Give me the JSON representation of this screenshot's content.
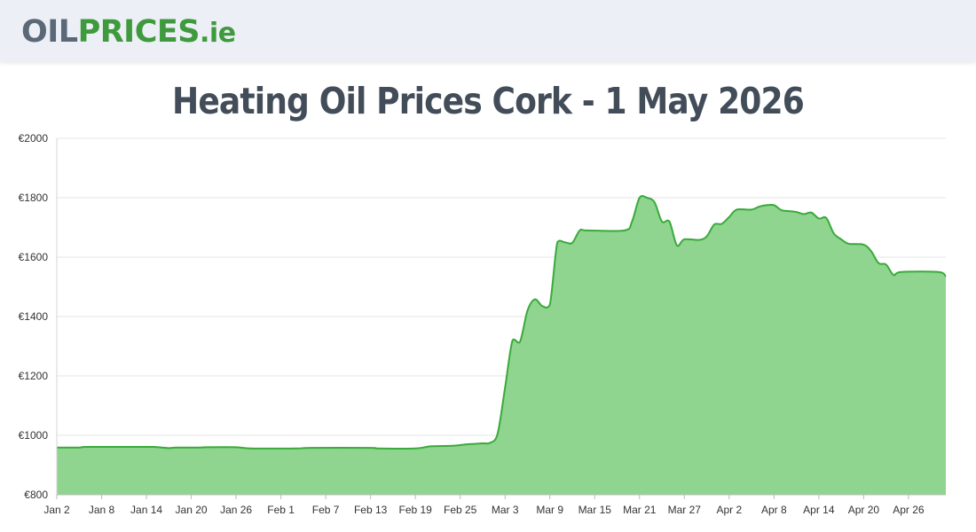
{
  "header": {
    "logo_part1": "OIL",
    "logo_part2": "PRICES",
    "logo_part3": ".",
    "logo_part4": "ie"
  },
  "page_title": "Heating Oil Prices Cork - 1 May 2026",
  "colors": {
    "header_bg": "#eceff5",
    "logo_grey": "#5b6878",
    "logo_green": "#3e9a3c",
    "area_fill": "#8fd48f",
    "line": "#3aaa3a",
    "title": "#434d5a"
  },
  "chart_data": {
    "type": "area",
    "title": "",
    "xlabel": "",
    "ylabel": "",
    "ylim": [
      800,
      2000
    ],
    "grid": true,
    "legend": "none",
    "y_ticks": [
      "€800",
      "€1000",
      "€1200",
      "€1400",
      "€1600",
      "€1800",
      "€2000"
    ],
    "y_tick_values": [
      800,
      1000,
      1200,
      1400,
      1600,
      1800,
      2000
    ],
    "x_ticks": [
      "Jan 2",
      "Jan 8",
      "Jan 14",
      "Jan 20",
      "Jan 26",
      "Feb 1",
      "Feb 7",
      "Feb 13",
      "Feb 19",
      "Feb 25",
      "Mar 3",
      "Mar 9",
      "Mar 15",
      "Mar 21",
      "Mar 27",
      "Apr 2",
      "Apr 8",
      "Apr 14",
      "Apr 20",
      "Apr 26"
    ],
    "x_tick_day_step": 6,
    "series": [
      {
        "values": [
          {
            "x": "Jan 2",
            "y": 959
          },
          {
            "x": "Jan 5",
            "y": 959
          },
          {
            "x": "Jan 6",
            "y": 961
          },
          {
            "x": "Jan 13",
            "y": 961
          },
          {
            "x": "Jan 15",
            "y": 961
          },
          {
            "x": "Jan 17",
            "y": 957
          },
          {
            "x": "Jan 18",
            "y": 959
          },
          {
            "x": "Jan 21",
            "y": 959
          },
          {
            "x": "Jan 22",
            "y": 960
          },
          {
            "x": "Jan 26",
            "y": 960
          },
          {
            "x": "Jan 28",
            "y": 956
          },
          {
            "x": "Feb 3",
            "y": 956
          },
          {
            "x": "Feb 5",
            "y": 958
          },
          {
            "x": "Feb 13",
            "y": 958
          },
          {
            "x": "Feb 14",
            "y": 956
          },
          {
            "x": "Feb 19",
            "y": 956
          },
          {
            "x": "Feb 21",
            "y": 963
          },
          {
            "x": "Feb 24",
            "y": 965
          },
          {
            "x": "Feb 26",
            "y": 970
          },
          {
            "x": "Feb 28",
            "y": 973
          },
          {
            "x": "Mar 1",
            "y": 975
          },
          {
            "x": "Mar 2",
            "y": 1005
          },
          {
            "x": "Mar 3",
            "y": 1160
          },
          {
            "x": "Mar 4",
            "y": 1320
          },
          {
            "x": "Mar 5",
            "y": 1315
          },
          {
            "x": "Mar 6",
            "y": 1420
          },
          {
            "x": "Mar 7",
            "y": 1458
          },
          {
            "x": "Mar 8",
            "y": 1435
          },
          {
            "x": "Mar 9",
            "y": 1440
          },
          {
            "x": "Mar 10",
            "y": 1650
          },
          {
            "x": "Mar 11",
            "y": 1650
          },
          {
            "x": "Mar 12",
            "y": 1648
          },
          {
            "x": "Mar 13",
            "y": 1690
          },
          {
            "x": "Mar 14",
            "y": 1690
          },
          {
            "x": "Mar 19",
            "y": 1690
          },
          {
            "x": "Mar 20",
            "y": 1720
          },
          {
            "x": "Mar 21",
            "y": 1800
          },
          {
            "x": "Mar 22",
            "y": 1800
          },
          {
            "x": "Mar 23",
            "y": 1785
          },
          {
            "x": "Mar 24",
            "y": 1720
          },
          {
            "x": "Mar 25",
            "y": 1720
          },
          {
            "x": "Mar 26",
            "y": 1640
          },
          {
            "x": "Mar 27",
            "y": 1660
          },
          {
            "x": "Mar 29",
            "y": 1658
          },
          {
            "x": "Mar 30",
            "y": 1670
          },
          {
            "x": "Mar 31",
            "y": 1710
          },
          {
            "x": "Apr 1",
            "y": 1712
          },
          {
            "x": "Apr 2",
            "y": 1735
          },
          {
            "x": "Apr 3",
            "y": 1760
          },
          {
            "x": "Apr 5",
            "y": 1760
          },
          {
            "x": "Apr 6",
            "y": 1770
          },
          {
            "x": "Apr 7",
            "y": 1775
          },
          {
            "x": "Apr 8",
            "y": 1775
          },
          {
            "x": "Apr 9",
            "y": 1758
          },
          {
            "x": "Apr 10",
            "y": 1755
          },
          {
            "x": "Apr 11",
            "y": 1752
          },
          {
            "x": "Apr 12",
            "y": 1745
          },
          {
            "x": "Apr 13",
            "y": 1750
          },
          {
            "x": "Apr 14",
            "y": 1730
          },
          {
            "x": "Apr 15",
            "y": 1732
          },
          {
            "x": "Apr 16",
            "y": 1680
          },
          {
            "x": "Apr 17",
            "y": 1660
          },
          {
            "x": "Apr 18",
            "y": 1645
          },
          {
            "x": "Apr 20",
            "y": 1642
          },
          {
            "x": "Apr 21",
            "y": 1620
          },
          {
            "x": "Apr 22",
            "y": 1580
          },
          {
            "x": "Apr 23",
            "y": 1575
          },
          {
            "x": "Apr 24",
            "y": 1540
          },
          {
            "x": "Apr 25",
            "y": 1550
          },
          {
            "x": "Apr 30",
            "y": 1550
          },
          {
            "x": "May 1",
            "y": 1535
          }
        ]
      }
    ]
  }
}
